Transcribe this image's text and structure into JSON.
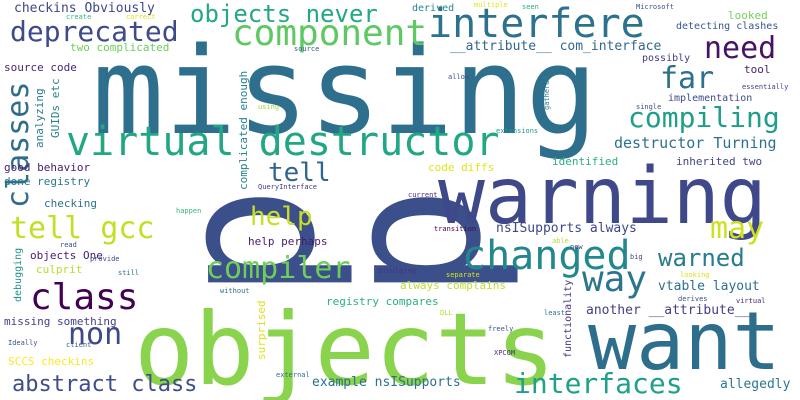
{
  "words": [
    {
      "text": "p",
      "color": "#3b4f8b"
    },
    {
      "text": "p",
      "color": "#3b4f8b"
    },
    {
      "text": "missing",
      "color": "#2e6f8e"
    },
    {
      "text": "objects",
      "color": "#8ad34d"
    },
    {
      "text": "want",
      "color": "#2e6e8d"
    },
    {
      "text": "warning",
      "color": "#3f4889"
    },
    {
      "text": "virtual destructor",
      "color": "#22a785"
    },
    {
      "text": "interfere",
      "color": "#2c728e"
    },
    {
      "text": "component",
      "color": "#5ec962"
    },
    {
      "text": "objects never",
      "color": "#22a884"
    },
    {
      "text": "deprecated",
      "color": "#3e4a89"
    },
    {
      "text": "changed",
      "color": "#23888e"
    },
    {
      "text": "way",
      "color": "#2b758e"
    },
    {
      "text": "class",
      "color": "#440154"
    },
    {
      "text": "classes",
      "color": "#2f6c8e"
    },
    {
      "text": "tell gcc",
      "color": "#c2df23"
    },
    {
      "text": "compiler",
      "color": "#6ece58"
    },
    {
      "text": "compiling",
      "color": "#1f9e89"
    },
    {
      "text": "abstract class",
      "color": "#3e4c8a"
    },
    {
      "text": "interfaces",
      "color": "#1fa088"
    },
    {
      "text": "need",
      "color": "#471164"
    },
    {
      "text": "far",
      "color": "#2d708e"
    },
    {
      "text": "non",
      "color": "#3e4989"
    },
    {
      "text": "tell",
      "color": "#32658e"
    },
    {
      "text": "help",
      "color": "#c8e020"
    },
    {
      "text": "may",
      "color": "#cde11d"
    },
    {
      "text": "warned",
      "color": "#287c8e"
    },
    {
      "text": "destructor Turning",
      "color": "#2d718e"
    },
    {
      "text": "__attribute__ com_interface",
      "color": "#31668e"
    },
    {
      "text": "checkins Obviously",
      "color": "#3f4788"
    },
    {
      "text": "two complicated",
      "color": "#6ccd5a"
    },
    {
      "text": "source code",
      "color": "#482677"
    },
    {
      "text": "analyzing",
      "color": "#29798e"
    },
    {
      "text": "GUIDs etc",
      "color": "#26828e"
    },
    {
      "text": "good behavior",
      "color": "#482273"
    },
    {
      "text": "done registry",
      "color": "#2a778e"
    },
    {
      "text": "checking",
      "color": "#2c738e"
    },
    {
      "text": "debugging",
      "color": "#21918c"
    },
    {
      "text": "objects One",
      "color": "#481b6d"
    },
    {
      "text": "culprit",
      "color": "#b5de2b"
    },
    {
      "text": "missing something",
      "color": "#433e85"
    },
    {
      "text": "SCCS checkins",
      "color": "#fde725"
    },
    {
      "text": "Ideally",
      "color": "#3b528b"
    },
    {
      "text": "nsISupports always",
      "color": "#3f4788"
    },
    {
      "text": "help perhaps",
      "color": "#481a6c"
    },
    {
      "text": "always complains",
      "color": "#bddf26"
    },
    {
      "text": "registry compares",
      "color": "#2ab07f"
    },
    {
      "text": "vtable layout",
      "color": "#2d718e"
    },
    {
      "text": "another __attribute__",
      "color": "#423f85"
    },
    {
      "text": "example nsISupports",
      "color": "#2d708e"
    },
    {
      "text": "allegedly",
      "color": "#2a788e"
    },
    {
      "text": "surprised",
      "color": "#dde318"
    },
    {
      "text": "functionality",
      "color": "#46337e"
    },
    {
      "text": "complicated enough",
      "color": "#25838e"
    },
    {
      "text": "identified",
      "color": "#2ab07f"
    },
    {
      "text": "inherited two",
      "color": "#414487"
    },
    {
      "text": "code diffs",
      "color": "#e2e418"
    },
    {
      "text": "detecting clashes",
      "color": "#39568c"
    },
    {
      "text": "implementation",
      "color": "#3e4a89"
    },
    {
      "text": "looked",
      "color": "#75d054"
    },
    {
      "text": "possibly",
      "color": "#443983"
    },
    {
      "text": "tool",
      "color": "#482475"
    },
    {
      "text": "derived",
      "color": "#25848e"
    },
    {
      "text": "client",
      "color": "#38588c"
    },
    {
      "text": "create",
      "color": "#35b779"
    },
    {
      "text": "correct",
      "color": "#dde318"
    },
    {
      "text": "multiple",
      "color": "#dde318"
    },
    {
      "text": "seen",
      "color": "#27ad81"
    },
    {
      "text": "Microsoft",
      "color": "#3b528b"
    },
    {
      "text": "source",
      "color": "#38598c"
    },
    {
      "text": "allow",
      "color": "#3e4a89"
    },
    {
      "text": "essentially",
      "color": "#433e85"
    },
    {
      "text": "single",
      "color": "#3b528b"
    },
    {
      "text": "extensions",
      "color": "#1f9a8a"
    },
    {
      "text": "gathered",
      "color": "#26828e"
    },
    {
      "text": "using",
      "color": "#a0da39"
    },
    {
      "text": "QueryInterface",
      "color": "#453781"
    },
    {
      "text": "current",
      "color": "#482878"
    },
    {
      "text": "happen",
      "color": "#35b779"
    },
    {
      "text": "transition",
      "color": "#440154"
    },
    {
      "text": "able",
      "color": "#b5de2b"
    },
    {
      "text": "new",
      "color": "#414487"
    },
    {
      "text": "big",
      "color": "#3e4a89"
    },
    {
      "text": "read",
      "color": "#3e4a89"
    },
    {
      "text": "provide",
      "color": "#3e4a89"
    },
    {
      "text": "still",
      "color": "#2e6f8e"
    },
    {
      "text": "divulging",
      "color": "#46337e"
    },
    {
      "text": "separate",
      "color": "#d8e219"
    },
    {
      "text": "looking",
      "color": "#d8e219"
    },
    {
      "text": "derives",
      "color": "#3e4a89"
    },
    {
      "text": "virtual",
      "color": "#482475"
    },
    {
      "text": "without",
      "color": "#2e6f8e"
    },
    {
      "text": "DLL",
      "color": "#b5de2b"
    },
    {
      "text": "least",
      "color": "#2e6f8e"
    },
    {
      "text": "freely",
      "color": "#3b528b"
    },
    {
      "text": "XPCOM",
      "color": "#46337e"
    },
    {
      "text": "external",
      "color": "#2e6f8e"
    }
  ]
}
